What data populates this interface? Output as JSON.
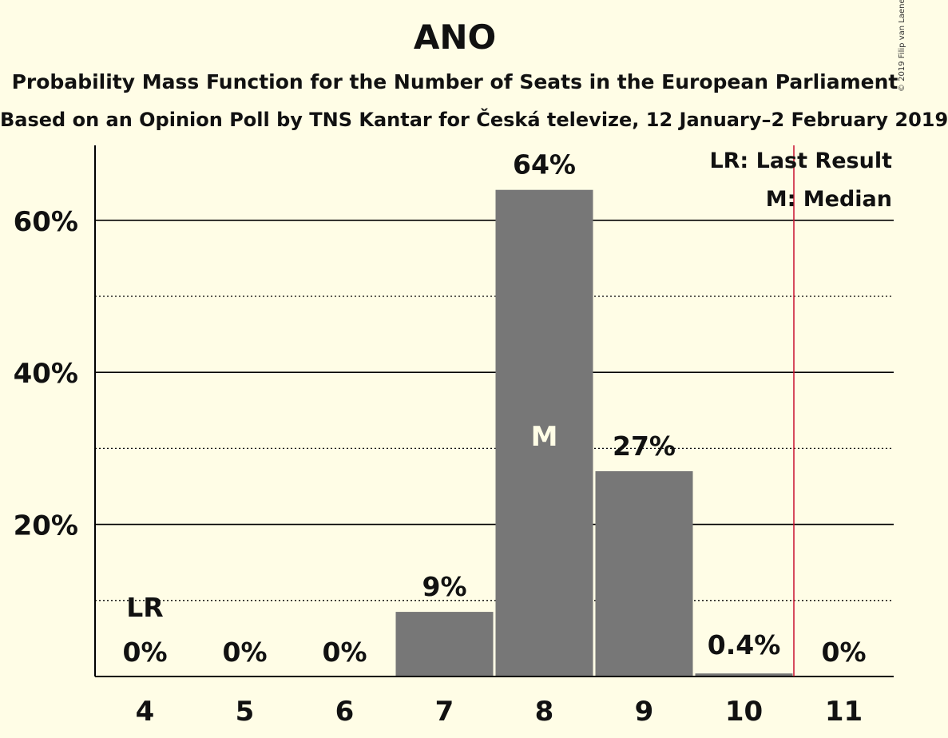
{
  "chart_data": {
    "type": "bar",
    "title": "ANO",
    "subtitle1": "Probability Mass Function for the Number of Seats in the European Parliament",
    "subtitle2": "Based on an Opinion Poll by TNS Kantar for Česká televize, 12 January–2 February 2019",
    "copyright": "© 2019 Filip van Laenen",
    "categories": [
      "4",
      "5",
      "6",
      "7",
      "8",
      "9",
      "10",
      "11"
    ],
    "values": [
      0,
      0,
      0,
      8.5,
      64,
      27,
      0.4,
      0
    ],
    "value_labels": [
      "0%",
      "0%",
      "0%",
      "9%",
      "64%",
      "27%",
      "0.4%",
      "0%"
    ],
    "ylim": [
      0,
      70
    ],
    "yticks": [
      20,
      40,
      60
    ],
    "ytick_labels": [
      "20%",
      "40%",
      "60%"
    ],
    "minor_gridlines": [
      10,
      30,
      50
    ],
    "last_result_seat": "4",
    "last_result_marker": "LR",
    "median_seat": "8",
    "median_marker": "M",
    "majority_line_after": "10",
    "legend": [
      "LR: Last Result",
      "M: Median"
    ],
    "legend_position": "top-right",
    "colors": {
      "background": "#FFFDE6",
      "bar": "#777777",
      "axis": "#000000",
      "threshold_line": "#C8102E",
      "text": "#111111",
      "median_text": "#FFFDE6"
    }
  }
}
